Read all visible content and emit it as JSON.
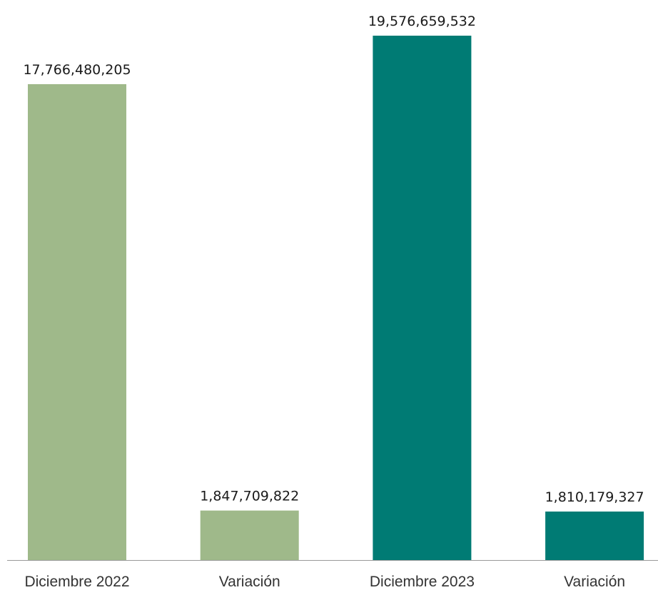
{
  "chart_data": {
    "type": "bar",
    "categories": [
      "Diciembre 2022",
      "Variación",
      "Diciembre 2023",
      "Variación"
    ],
    "values": [
      17766480205,
      1847709822,
      19576659532,
      1810179327
    ],
    "value_labels": [
      "17,766,480,205",
      "1,847,709,822",
      "19,576,659,532",
      "1,810,179,327"
    ],
    "colors": [
      "#9fb98a",
      "#9fb98a",
      "#007b74",
      "#007b74"
    ]
  }
}
